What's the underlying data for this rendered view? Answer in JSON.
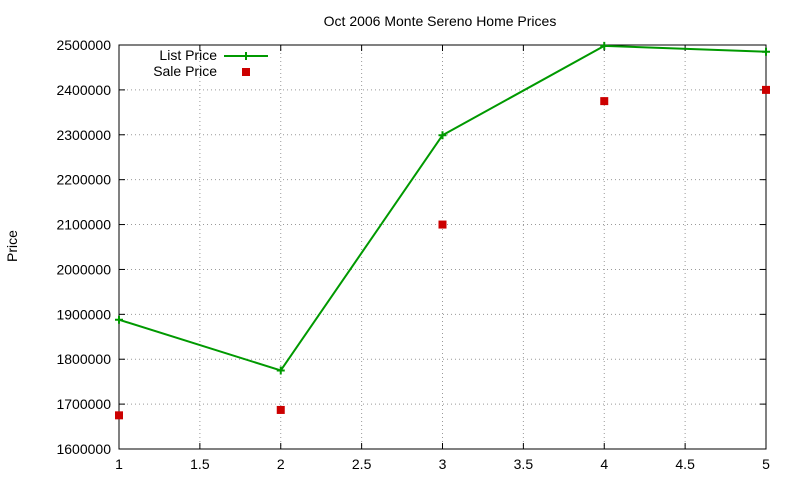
{
  "chart_data": {
    "type": "line",
    "title": "Oct 2006 Monte Sereno Home Prices",
    "xlabel": "",
    "ylabel": "Price",
    "xlim": [
      1,
      5
    ],
    "ylim": [
      1600000,
      2500000
    ],
    "x_ticks": [
      1,
      1.5,
      2,
      2.5,
      3,
      3.5,
      4,
      4.5,
      5
    ],
    "x_tick_labels": [
      "1",
      "1.5",
      "2",
      "2.5",
      "3",
      "3.5",
      "4",
      "4.5",
      "5"
    ],
    "y_ticks": [
      1600000,
      1700000,
      1800000,
      1900000,
      2000000,
      2100000,
      2200000,
      2300000,
      2400000,
      2500000
    ],
    "y_tick_labels": [
      "1600000",
      "1700000",
      "1800000",
      "1900000",
      "2000000",
      "2100000",
      "2200000",
      "2300000",
      "2400000",
      "2500000"
    ],
    "grid": true,
    "legend_position": "top-left",
    "series": [
      {
        "name": "List Price",
        "style": "linespoints",
        "marker": "plus",
        "color": "#009900",
        "x": [
          1,
          2,
          3,
          4,
          5
        ],
        "y": [
          1888000,
          1775000,
          2299000,
          2498000,
          2485000
        ]
      },
      {
        "name": "Sale Price",
        "style": "points",
        "marker": "square",
        "color": "#cc0000",
        "x": [
          1,
          2,
          3,
          4,
          5
        ],
        "y": [
          1675000,
          1687000,
          2100000,
          2375000,
          2400000
        ]
      }
    ]
  }
}
